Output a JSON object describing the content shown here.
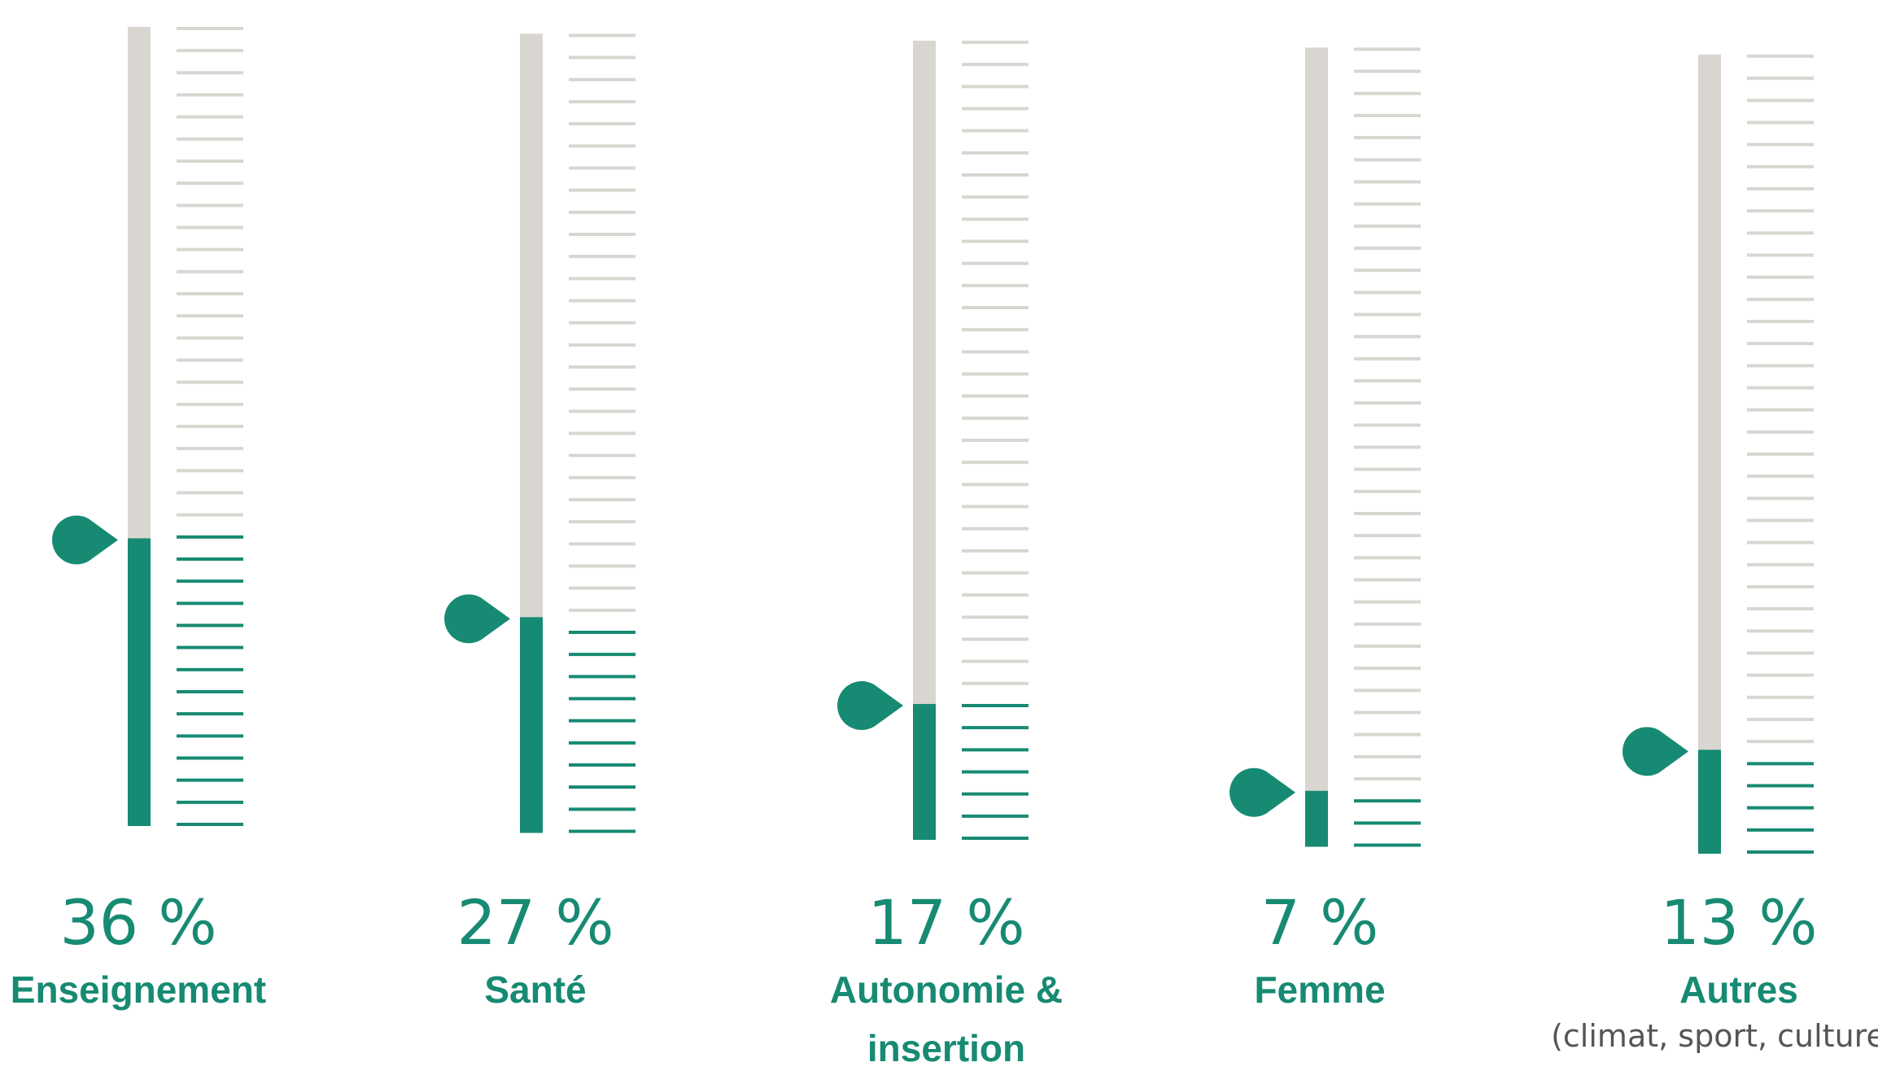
{
  "chart_data": {
    "type": "bar",
    "categories": [
      "Enseignement",
      "Santé",
      "Autonomie & insertion",
      "Femme",
      "Autres"
    ],
    "values": [
      36,
      27,
      17,
      7,
      13
    ],
    "value_labels": [
      "36 %",
      "27 %",
      "17 %",
      "7 %",
      "13 %"
    ],
    "label_lines": [
      [
        "Enseignement"
      ],
      [
        "Santé"
      ],
      [
        "Autonomie &",
        "insertion"
      ],
      [
        "Femme"
      ],
      [
        "Autres"
      ]
    ],
    "notes": [
      "",
      "",
      "",
      "",
      "(climat, sport, culture...)"
    ],
    "ylim": [
      0,
      100
    ],
    "colors": {
      "fill": "#178a73",
      "empty": "#d9d6d1",
      "text": "#178a73"
    },
    "grid": false,
    "title": "",
    "xlabel": "",
    "ylabel": ""
  }
}
